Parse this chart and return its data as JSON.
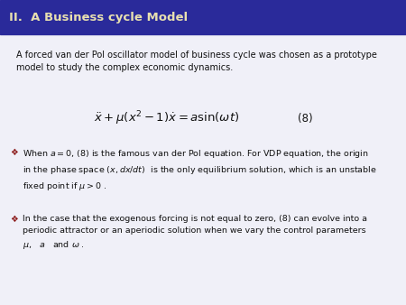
{
  "title": "II.  A Business cycle Model",
  "title_bg_color": "#2a2a9a",
  "title_text_color": "#e8e0b0",
  "slide_bg_color": "#f0f0f8",
  "body_text_color": "#111111",
  "bullet_color": "#8b1a1a",
  "intro_text": "A forced van der Pol oscillator model of business cycle was chosen as a prototype\nmodel to study the complex economic dynamics.",
  "equation": "$\\ddot{x} + \\mu(x^2 - 1)\\dot{x} = a\\sin(\\omega t)$",
  "eq_number": "(8)",
  "bullet1_line1": "When $a=0$, (8) is the famous van der Pol equation. For VDP equation, the origin",
  "bullet1_line2": "in the phase space $(x, dx/dt)$  is the only equilibrium solution, which is an unstable",
  "bullet1_line3": "fixed point if $\\mu > 0$ .",
  "bullet2_line1": "In the case that the exogenous forcing is not equal to zero, (8) can evolve into a",
  "bullet2_line2": "periodic attractor or an aperiodic solution when we vary the control parameters",
  "bullet2_line3": "$\\mu$,   $a$   and $\\omega$ ."
}
